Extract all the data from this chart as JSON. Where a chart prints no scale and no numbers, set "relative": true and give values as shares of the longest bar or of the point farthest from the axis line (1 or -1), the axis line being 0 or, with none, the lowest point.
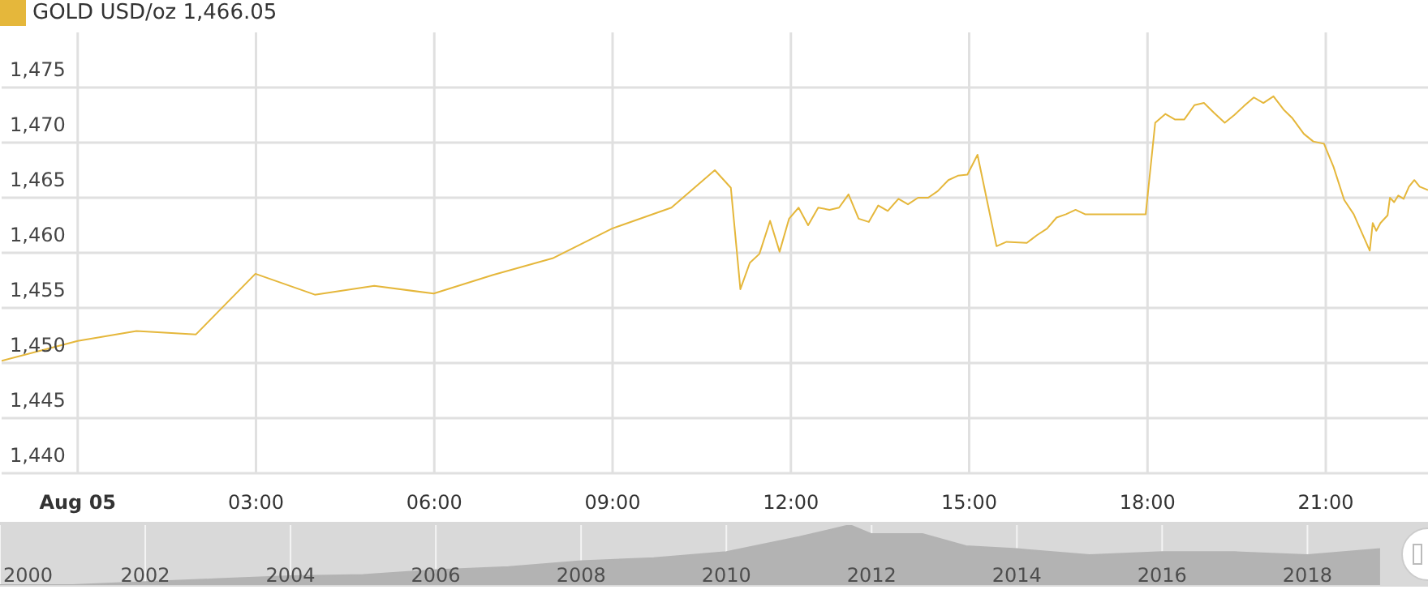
{
  "chart_data": [
    {
      "type": "line",
      "legend": "top left",
      "grid": true,
      "marker": "none",
      "line_style": "solid",
      "xlim": [
        -1.28,
        22.72
      ],
      "xticks": [
        {
          "value": 0,
          "label": "Aug 05"
        },
        {
          "value": 3,
          "label": "03:00"
        },
        {
          "value": 6,
          "label": "06:00"
        },
        {
          "value": 9,
          "label": "09:00"
        },
        {
          "value": 12,
          "label": "12:00"
        },
        {
          "value": 15,
          "label": "15:00"
        },
        {
          "value": 18,
          "label": "18:00"
        },
        {
          "value": 21,
          "label": "21:00"
        }
      ],
      "ylim": [
        1440,
        1480
      ],
      "yticks": [
        {
          "value": 1440,
          "label": "1,440"
        },
        {
          "value": 1445,
          "label": "1,445"
        },
        {
          "value": 1450,
          "label": "1,450"
        },
        {
          "value": 1455,
          "label": "1,455"
        },
        {
          "value": 1460,
          "label": "1,460"
        },
        {
          "value": 1465,
          "label": "1,465"
        },
        {
          "value": 1470,
          "label": "1,470"
        },
        {
          "value": 1475,
          "label": "1,475"
        }
      ],
      "series": [
        {
          "name": "GOLD USD/oz 1,466.05",
          "color": "#e5b73b",
          "x": [
            -1.28,
            0,
            0.99,
            1.99,
            2.99,
            3.99,
            4.99,
            5.99,
            6.99,
            7.99,
            8.99,
            9.99,
            10.72,
            10.99,
            11.15,
            11.31,
            11.47,
            11.65,
            11.81,
            11.97,
            12.13,
            12.29,
            12.46,
            12.65,
            12.81,
            12.97,
            13.14,
            13.31,
            13.47,
            13.63,
            13.81,
            13.97,
            14.14,
            14.31,
            14.47,
            14.65,
            14.81,
            14.97,
            15.14,
            15.46,
            15.63,
            15.97,
            16.14,
            16.31,
            16.47,
            16.63,
            16.79,
            16.95,
            17.97,
            18.13,
            18.3,
            18.46,
            18.62,
            18.79,
            18.95,
            19.12,
            19.3,
            19.46,
            19.62,
            19.79,
            19.95,
            20.12,
            20.29,
            20.44,
            20.63,
            20.79,
            20.97,
            21.13,
            21.31,
            21.47,
            21.74,
            21.79,
            21.85,
            21.92,
            22.04,
            22.08,
            22.15,
            22.22,
            22.31,
            22.4,
            22.49,
            22.58,
            22.72
          ],
          "values": [
            1450.2,
            1452.0,
            1452.9,
            1452.6,
            1458.1,
            1456.2,
            1457.0,
            1456.3,
            1458.0,
            1459.5,
            1462.2,
            1464.1,
            1467.5,
            1465.9,
            1456.7,
            1459.1,
            1459.9,
            1462.9,
            1460.1,
            1463.1,
            1464.1,
            1462.5,
            1464.1,
            1463.9,
            1464.1,
            1465.3,
            1463.1,
            1462.8,
            1464.3,
            1463.8,
            1464.9,
            1464.4,
            1465.0,
            1465.0,
            1465.6,
            1466.6,
            1467.0,
            1467.1,
            1468.9,
            1460.6,
            1461.0,
            1460.9,
            1461.6,
            1462.2,
            1463.2,
            1463.5,
            1463.9,
            1463.5,
            1463.5,
            1471.8,
            1472.6,
            1472.1,
            1472.1,
            1473.4,
            1473.6,
            1472.7,
            1471.8,
            1472.5,
            1473.3,
            1474.1,
            1473.6,
            1474.2,
            1473.0,
            1472.2,
            1470.8,
            1470.1,
            1469.9,
            1467.8,
            1464.8,
            1463.5,
            1460.2,
            1462.7,
            1462.0,
            1462.7,
            1463.4,
            1465.0,
            1464.6,
            1465.2,
            1464.9,
            1466.0,
            1466.6,
            1466.0,
            1465.7
          ]
        }
      ]
    },
    {
      "type": "area",
      "relative": true,
      "grid": "x",
      "tick_labels": "x",
      "xlim": [
        2000,
        2019.66
      ],
      "xticks": [
        2000,
        2002,
        2004,
        2006,
        2008,
        2010,
        2012,
        2014,
        2016,
        2018
      ],
      "series": [
        {
          "color": "#b3b3b3",
          "x": [
            2000,
            2001,
            2002,
            2003,
            2004,
            2005,
            2006,
            2007,
            2008,
            2009,
            2010,
            2011,
            2011.7,
            2012,
            2012.7,
            2013.3,
            2014,
            2015,
            2016,
            2017,
            2018,
            2019
          ],
          "values": [
            0,
            0,
            0.05,
            0.1,
            0.15,
            0.17,
            0.25,
            0.3,
            0.4,
            0.45,
            0.55,
            0.8,
            1.0,
            0.85,
            0.85,
            0.65,
            0.6,
            0.5,
            0.55,
            0.55,
            0.5,
            0.6
          ]
        }
      ]
    }
  ]
}
